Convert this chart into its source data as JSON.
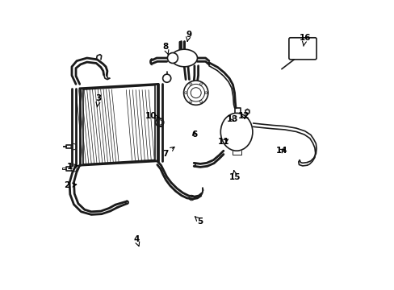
{
  "background_color": "#ffffff",
  "line_color": "#1a1a1a",
  "fig_width": 4.89,
  "fig_height": 3.6,
  "dpi": 100,
  "annotations": [
    [
      1,
      0.06,
      0.425,
      0.1,
      0.43
    ],
    [
      2,
      0.05,
      0.36,
      0.095,
      0.365
    ],
    [
      3,
      0.16,
      0.66,
      0.155,
      0.63
    ],
    [
      4,
      0.29,
      0.175,
      0.3,
      0.148
    ],
    [
      5,
      0.51,
      0.235,
      0.49,
      0.255
    ],
    [
      6,
      0.49,
      0.535,
      0.49,
      0.55
    ],
    [
      7,
      0.39,
      0.47,
      0.43,
      0.5
    ],
    [
      8,
      0.39,
      0.84,
      0.4,
      0.81
    ],
    [
      9,
      0.47,
      0.88,
      0.465,
      0.855
    ],
    [
      10,
      0.34,
      0.6,
      0.37,
      0.595
    ],
    [
      11,
      0.59,
      0.51,
      0.615,
      0.525
    ],
    [
      12,
      0.66,
      0.6,
      0.665,
      0.58
    ],
    [
      13,
      0.62,
      0.59,
      0.63,
      0.575
    ],
    [
      14,
      0.79,
      0.48,
      0.81,
      0.49
    ],
    [
      15,
      0.63,
      0.39,
      0.625,
      0.415
    ],
    [
      16,
      0.87,
      0.87,
      0.865,
      0.84
    ]
  ]
}
